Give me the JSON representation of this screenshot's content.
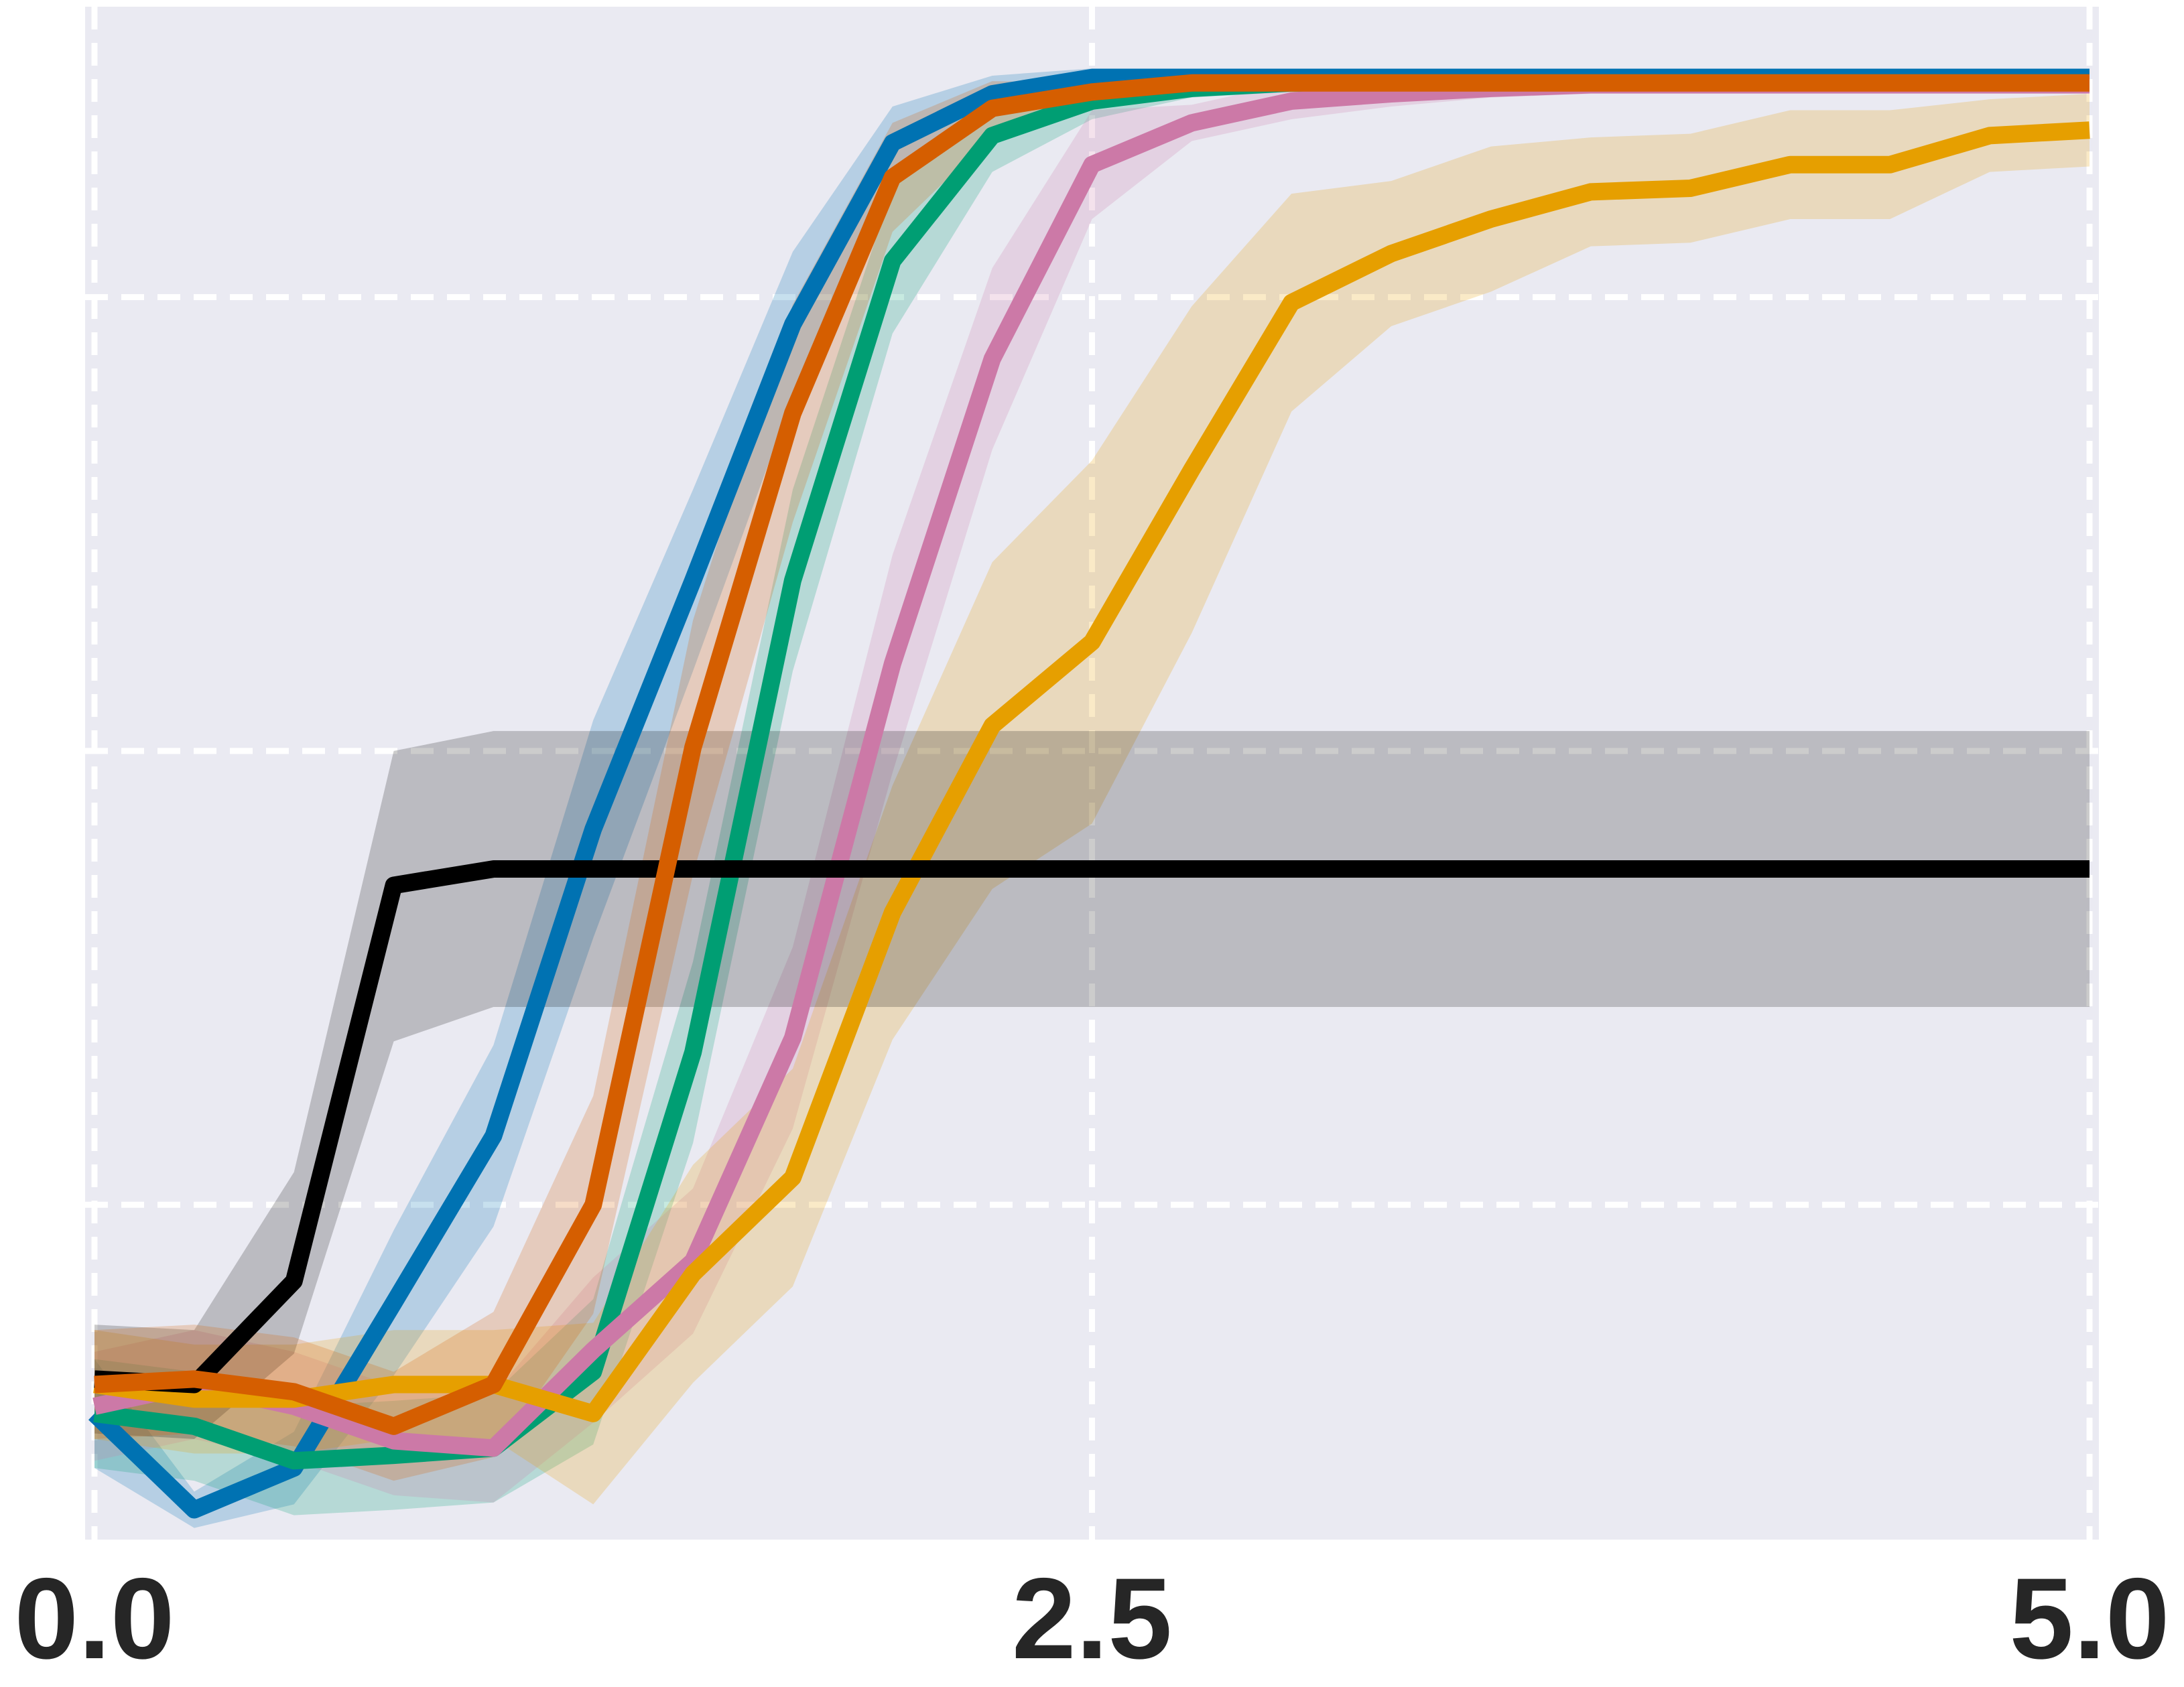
{
  "chart_data": {
    "type": "line",
    "x": [
      0,
      0.25,
      0.5,
      0.75,
      1,
      1.25,
      1.5,
      1.75,
      2,
      2.25,
      2.5,
      2.75,
      3,
      3.25,
      3.5,
      3.75,
      4,
      4.25,
      4.5,
      4.75,
      5
    ],
    "xlim": [
      0,
      5
    ],
    "xticks": [
      {
        "value": 0,
        "label": "0.0"
      },
      {
        "value": 2.5,
        "label": "2.5"
      },
      {
        "value": 5,
        "label": "5.0"
      }
    ],
    "ylim": [
      0.07,
      0.91
    ],
    "ygrid": [
      0.25,
      0.5,
      0.75
    ],
    "grid": true,
    "background": "#eaeaf2",
    "series": [
      {
        "color": "#0072b2",
        "values": [
          0.135,
          0.082,
          0.105,
          0.196,
          0.288,
          0.457,
          0.594,
          0.735,
          0.835,
          0.862,
          0.871,
          0.871,
          0.871,
          0.871,
          0.871,
          0.871,
          0.871,
          0.871,
          0.871,
          0.871,
          0.871
        ],
        "lower": [
          0.105,
          0.072,
          0.085,
          0.156,
          0.238,
          0.397,
          0.544,
          0.695,
          0.815,
          0.852,
          0.866,
          0.866,
          0.866,
          0.866,
          0.866,
          0.866,
          0.866,
          0.866,
          0.866,
          0.866,
          0.866
        ],
        "upper": [
          0.165,
          0.092,
          0.125,
          0.236,
          0.338,
          0.517,
          0.644,
          0.775,
          0.855,
          0.872,
          0.876,
          0.876,
          0.876,
          0.876,
          0.876,
          0.876,
          0.876,
          0.876,
          0.876,
          0.876,
          0.876
        ]
      },
      {
        "color": "#009e73",
        "values": [
          0.135,
          0.128,
          0.109,
          0.112,
          0.116,
          0.158,
          0.334,
          0.594,
          0.77,
          0.839,
          0.858,
          0.865,
          0.868,
          0.868,
          0.868,
          0.868,
          0.868,
          0.868,
          0.868,
          0.868,
          0.868
        ],
        "lower": [
          0.105,
          0.098,
          0.079,
          0.082,
          0.086,
          0.118,
          0.284,
          0.544,
          0.73,
          0.819,
          0.848,
          0.86,
          0.863,
          0.863,
          0.863,
          0.863,
          0.863,
          0.863,
          0.863,
          0.863,
          0.863
        ],
        "upper": [
          0.165,
          0.158,
          0.139,
          0.142,
          0.146,
          0.198,
          0.384,
          0.644,
          0.81,
          0.859,
          0.868,
          0.87,
          0.873,
          0.873,
          0.873,
          0.873,
          0.873,
          0.873,
          0.873,
          0.873,
          0.873
        ]
      },
      {
        "color": "#cc79a7",
        "values": [
          0.139,
          0.151,
          0.139,
          0.12,
          0.116,
          0.17,
          0.219,
          0.342,
          0.548,
          0.716,
          0.823,
          0.846,
          0.858,
          0.862,
          0.865,
          0.867,
          0.867,
          0.867,
          0.867,
          0.867,
          0.867
        ],
        "lower": [
          0.109,
          0.121,
          0.109,
          0.09,
          0.086,
          0.13,
          0.179,
          0.292,
          0.488,
          0.666,
          0.793,
          0.836,
          0.848,
          0.855,
          0.86,
          0.862,
          0.862,
          0.862,
          0.862,
          0.862,
          0.862
        ],
        "upper": [
          0.169,
          0.181,
          0.169,
          0.15,
          0.146,
          0.21,
          0.259,
          0.392,
          0.608,
          0.766,
          0.853,
          0.856,
          0.868,
          0.869,
          0.87,
          0.872,
          0.872,
          0.872,
          0.872,
          0.872,
          0.872
        ]
      },
      {
        "color": "#e69f00",
        "values": [
          0.151,
          0.143,
          0.143,
          0.151,
          0.151,
          0.135,
          0.212,
          0.265,
          0.411,
          0.514,
          0.56,
          0.655,
          0.747,
          0.774,
          0.793,
          0.808,
          0.81,
          0.823,
          0.823,
          0.839,
          0.842
        ],
        "lower": [
          0.121,
          0.113,
          0.113,
          0.121,
          0.121,
          0.085,
          0.152,
          0.205,
          0.341,
          0.424,
          0.46,
          0.565,
          0.687,
          0.734,
          0.753,
          0.778,
          0.78,
          0.793,
          0.793,
          0.819,
          0.822
        ],
        "upper": [
          0.181,
          0.173,
          0.173,
          0.181,
          0.181,
          0.185,
          0.272,
          0.325,
          0.481,
          0.604,
          0.66,
          0.745,
          0.807,
          0.814,
          0.833,
          0.838,
          0.84,
          0.853,
          0.853,
          0.859,
          0.862
        ]
      },
      {
        "color": "#000000",
        "values": [
          0.154,
          0.151,
          0.208,
          0.426,
          0.435,
          0.435,
          0.435,
          0.435,
          0.435,
          0.435,
          0.435,
          0.435,
          0.435,
          0.435,
          0.435,
          0.435,
          0.435,
          0.435,
          0.435,
          0.435,
          0.435
        ],
        "lower": [
          0.124,
          0.121,
          0.168,
          0.34,
          0.359,
          0.359,
          0.359,
          0.359,
          0.359,
          0.359,
          0.359,
          0.359,
          0.359,
          0.359,
          0.359,
          0.359,
          0.359,
          0.359,
          0.359,
          0.359,
          0.359
        ],
        "upper": [
          0.184,
          0.181,
          0.268,
          0.5,
          0.511,
          0.511,
          0.511,
          0.511,
          0.511,
          0.511,
          0.511,
          0.511,
          0.511,
          0.511,
          0.511,
          0.511,
          0.511,
          0.511,
          0.511,
          0.511,
          0.511
        ]
      },
      {
        "color": "#d55e00",
        "values": [
          0.151,
          0.154,
          0.147,
          0.128,
          0.151,
          0.25,
          0.502,
          0.686,
          0.816,
          0.854,
          0.863,
          0.868,
          0.868,
          0.868,
          0.868,
          0.868,
          0.868,
          0.868,
          0.868,
          0.868,
          0.868
        ],
        "lower": [
          0.121,
          0.124,
          0.117,
          0.098,
          0.111,
          0.19,
          0.432,
          0.626,
          0.786,
          0.839,
          0.858,
          0.863,
          0.863,
          0.863,
          0.863,
          0.863,
          0.863,
          0.863,
          0.863,
          0.863,
          0.863
        ],
        "upper": [
          0.181,
          0.184,
          0.177,
          0.158,
          0.191,
          0.31,
          0.572,
          0.746,
          0.846,
          0.869,
          0.868,
          0.873,
          0.873,
          0.873,
          0.873,
          0.873,
          0.873,
          0.873,
          0.873,
          0.873,
          0.873
        ]
      }
    ]
  }
}
